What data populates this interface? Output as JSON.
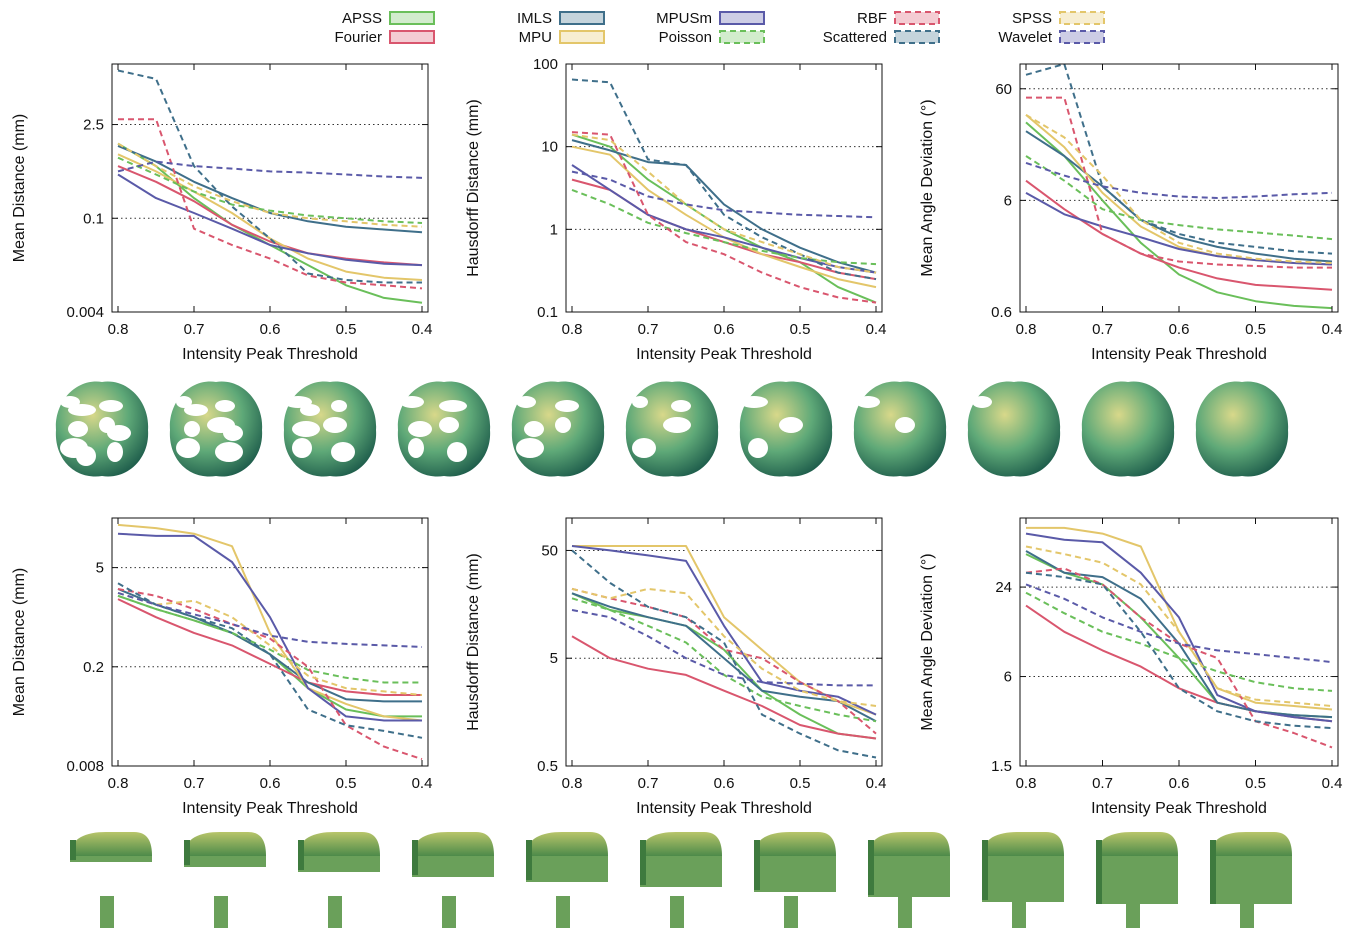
{
  "legend": {
    "entries": [
      {
        "name": "APSS",
        "color": "#6abf5a",
        "dash": false
      },
      {
        "name": "Fourier",
        "color": "#d9566e",
        "dash": false
      },
      {
        "name": "IMLS",
        "color": "#3f6f8a",
        "dash": false
      },
      {
        "name": "MPU",
        "color": "#e3c66a",
        "dash": false
      },
      {
        "name": "MPUSm",
        "color": "#5a5aa8",
        "dash": false
      },
      {
        "name": "Poisson",
        "color": "#6abf5a",
        "dash": true
      },
      {
        "name": "RBF",
        "color": "#d9566e",
        "dash": true
      },
      {
        "name": "Scattered",
        "color": "#3f6f8a",
        "dash": true
      },
      {
        "name": "SPSS",
        "color": "#e3c66a",
        "dash": true
      },
      {
        "name": "Wavelet",
        "color": "#5a5aa8",
        "dash": true
      }
    ]
  },
  "chart_data": [
    {
      "type": "line",
      "xlabel": "Intensity Peak Threshold",
      "ylabel": "Mean Distance (mm)",
      "yscale": "log",
      "ylim": [
        0.004,
        20
      ],
      "yticks": [
        0.004,
        0.1,
        2.5
      ],
      "ytick_labels": [
        "0.004",
        "0.1",
        "2.5"
      ],
      "xlim": [
        0.8,
        0.4
      ],
      "xticks": [
        0.8,
        0.7,
        0.6,
        0.5,
        0.4
      ],
      "xtick_labels": [
        "0.8",
        "0.7",
        "0.6",
        "0.5",
        "0.4"
      ],
      "grid_y": [
        0.1,
        2.5
      ],
      "x": [
        0.8,
        0.75,
        0.7,
        0.65,
        0.6,
        0.55,
        0.5,
        0.45,
        0.4
      ],
      "series": [
        {
          "name": "APSS",
          "values": [
            1.3,
            0.6,
            0.2,
            0.08,
            0.04,
            0.02,
            0.01,
            0.0065,
            0.0055
          ]
        },
        {
          "name": "Fourier",
          "values": [
            0.6,
            0.35,
            0.18,
            0.08,
            0.045,
            0.03,
            0.025,
            0.022,
            0.02
          ]
        },
        {
          "name": "IMLS",
          "values": [
            1.2,
            0.7,
            0.35,
            0.2,
            0.12,
            0.09,
            0.075,
            0.068,
            0.062
          ]
        },
        {
          "name": "MPU",
          "values": [
            0.9,
            0.5,
            0.25,
            0.12,
            0.05,
            0.025,
            0.016,
            0.013,
            0.012
          ]
        },
        {
          "name": "MPUSm",
          "values": [
            0.45,
            0.2,
            0.12,
            0.07,
            0.04,
            0.03,
            0.024,
            0.021,
            0.02
          ]
        },
        {
          "name": "Poisson",
          "values": [
            0.8,
            0.45,
            0.25,
            0.16,
            0.13,
            0.11,
            0.1,
            0.09,
            0.085
          ]
        },
        {
          "name": "RBF",
          "values": [
            3.0,
            3.0,
            0.07,
            0.04,
            0.025,
            0.014,
            0.011,
            0.01,
            0.009
          ]
        },
        {
          "name": "Scattered",
          "values": [
            16,
            12,
            0.6,
            0.15,
            0.05,
            0.015,
            0.012,
            0.011,
            0.011
          ]
        },
        {
          "name": "SPSS",
          "values": [
            1.3,
            0.6,
            0.3,
            0.18,
            0.12,
            0.1,
            0.09,
            0.08,
            0.075
          ]
        },
        {
          "name": "Wavelet",
          "values": [
            0.5,
            0.7,
            0.6,
            0.55,
            0.5,
            0.48,
            0.45,
            0.42,
            0.4
          ]
        }
      ]
    },
    {
      "type": "line",
      "xlabel": "Intensity Peak Threshold",
      "ylabel": "Hausdorff Distance (mm)",
      "yscale": "log",
      "ylim": [
        0.1,
        100
      ],
      "yticks": [
        0.1,
        1,
        10,
        100
      ],
      "ytick_labels": [
        "0.1",
        "1",
        "10",
        "100"
      ],
      "xlim": [
        0.8,
        0.4
      ],
      "xticks": [
        0.8,
        0.7,
        0.6,
        0.5,
        0.4
      ],
      "xtick_labels": [
        "0.8",
        "0.7",
        "0.6",
        "0.5",
        "0.4"
      ],
      "grid_y": [
        1,
        10
      ],
      "x": [
        0.8,
        0.75,
        0.7,
        0.65,
        0.6,
        0.55,
        0.5,
        0.45,
        0.4
      ],
      "series": [
        {
          "name": "APSS",
          "values": [
            14,
            10,
            4,
            2,
            1,
            0.6,
            0.4,
            0.2,
            0.13
          ]
        },
        {
          "name": "Fourier",
          "values": [
            4,
            3,
            1.5,
            1,
            0.7,
            0.5,
            0.4,
            0.3,
            0.25
          ]
        },
        {
          "name": "IMLS",
          "values": [
            12,
            9,
            6.5,
            6,
            2,
            1,
            0.6,
            0.4,
            0.3
          ]
        },
        {
          "name": "MPU",
          "values": [
            10,
            8,
            3,
            1.5,
            0.8,
            0.5,
            0.35,
            0.25,
            0.2
          ]
        },
        {
          "name": "MPUSm",
          "values": [
            6,
            3,
            1.5,
            1,
            0.8,
            0.6,
            0.45,
            0.35,
            0.3
          ]
        },
        {
          "name": "Poisson",
          "values": [
            3,
            2,
            1.2,
            0.9,
            0.7,
            0.55,
            0.45,
            0.4,
            0.38
          ]
        },
        {
          "name": "RBF",
          "values": [
            15,
            14,
            1.5,
            0.7,
            0.5,
            0.3,
            0.2,
            0.15,
            0.13
          ]
        },
        {
          "name": "Scattered",
          "values": [
            65,
            60,
            7,
            6,
            1.5,
            0.8,
            0.5,
            0.3,
            0.25
          ]
        },
        {
          "name": "SPSS",
          "values": [
            14,
            12,
            5,
            2,
            1,
            0.7,
            0.5,
            0.35,
            0.3
          ]
        },
        {
          "name": "Wavelet",
          "values": [
            5,
            4,
            2.5,
            2,
            1.7,
            1.6,
            1.5,
            1.45,
            1.4
          ]
        }
      ]
    },
    {
      "type": "line",
      "xlabel": "Intensity Peak Threshold",
      "ylabel": "Mean Angle Deviation (°)",
      "yscale": "log",
      "ylim": [
        0.6,
        100
      ],
      "yticks": [
        0.6,
        6,
        60
      ],
      "ytick_labels": [
        "0.6",
        "6",
        "60"
      ],
      "xlim": [
        0.8,
        0.4
      ],
      "xticks": [
        0.8,
        0.7,
        0.6,
        0.5,
        0.4
      ],
      "xtick_labels": [
        "0.8",
        "0.7",
        "0.6",
        "0.5",
        "0.4"
      ],
      "grid_y": [
        6,
        60
      ],
      "x": [
        0.8,
        0.75,
        0.7,
        0.65,
        0.6,
        0.55,
        0.5,
        0.45,
        0.4
      ],
      "series": [
        {
          "name": "APSS",
          "values": [
            30,
            15,
            6,
            2.5,
            1.3,
            0.9,
            0.75,
            0.68,
            0.65
          ]
        },
        {
          "name": "Fourier",
          "values": [
            9,
            5,
            3,
            2,
            1.5,
            1.2,
            1.05,
            1,
            0.95
          ]
        },
        {
          "name": "IMLS",
          "values": [
            25,
            15,
            8,
            4,
            2.8,
            2.3,
            2,
            1.8,
            1.7
          ]
        },
        {
          "name": "MPU",
          "values": [
            35,
            18,
            7,
            3.5,
            2.3,
            1.9,
            1.75,
            1.65,
            1.6
          ]
        },
        {
          "name": "MPUSm",
          "values": [
            7,
            4.5,
            3.5,
            2.8,
            2.2,
            1.9,
            1.75,
            1.65,
            1.6
          ]
        },
        {
          "name": "Poisson",
          "values": [
            15,
            9,
            5,
            4,
            3.6,
            3.3,
            3.1,
            2.9,
            2.7
          ]
        },
        {
          "name": "RBF",
          "values": [
            50,
            50,
            3,
            2,
            1.7,
            1.6,
            1.55,
            1.5,
            1.5
          ]
        },
        {
          "name": "Scattered",
          "values": [
            80,
            100,
            8,
            4,
            3,
            2.5,
            2.3,
            2.1,
            2
          ]
        },
        {
          "name": "SPSS",
          "values": [
            35,
            22,
            10,
            4,
            2.5,
            2,
            1.8,
            1.7,
            1.65
          ]
        },
        {
          "name": "Wavelet",
          "values": [
            13,
            10,
            8,
            7,
            6.5,
            6.3,
            6.5,
            6.8,
            7
          ]
        }
      ]
    },
    {
      "type": "line",
      "xlabel": "Intensity Peak Threshold",
      "ylabel": "Mean Distance (mm)",
      "yscale": "log",
      "ylim": [
        0.008,
        25
      ],
      "yticks": [
        0.008,
        0.2,
        5
      ],
      "ytick_labels": [
        "0.008",
        "0.2",
        "5"
      ],
      "xlim": [
        0.8,
        0.4
      ],
      "xticks": [
        0.8,
        0.7,
        0.6,
        0.5,
        0.4
      ],
      "xtick_labels": [
        "0.8",
        "0.7",
        "0.6",
        "0.5",
        "0.4"
      ],
      "grid_y": [
        0.2,
        5
      ],
      "x": [
        0.8,
        0.75,
        0.7,
        0.65,
        0.6,
        0.55,
        0.5,
        0.45,
        0.4
      ],
      "series": [
        {
          "name": "APSS",
          "values": [
            2,
            1.3,
            0.9,
            0.6,
            0.3,
            0.1,
            0.05,
            0.04,
            0.04
          ]
        },
        {
          "name": "Fourier",
          "values": [
            1.8,
            1,
            0.6,
            0.4,
            0.22,
            0.12,
            0.09,
            0.08,
            0.08
          ]
        },
        {
          "name": "IMLS",
          "values": [
            2.5,
            1.5,
            1,
            0.6,
            0.3,
            0.12,
            0.07,
            0.065,
            0.065
          ]
        },
        {
          "name": "MPU",
          "values": [
            20,
            18,
            15,
            10,
            0.6,
            0.1,
            0.06,
            0.04,
            0.035
          ]
        },
        {
          "name": "MPUSm",
          "values": [
            15,
            14,
            14,
            6,
            1,
            0.1,
            0.04,
            0.035,
            0.035
          ]
        },
        {
          "name": "Poisson",
          "values": [
            2,
            1.3,
            0.9,
            0.6,
            0.35,
            0.18,
            0.14,
            0.12,
            0.12
          ]
        },
        {
          "name": "RBF",
          "values": [
            2.5,
            2,
            1.3,
            0.8,
            0.5,
            0.2,
            0.03,
            0.015,
            0.01
          ]
        },
        {
          "name": "Scattered",
          "values": [
            3,
            1.5,
            1,
            0.7,
            0.3,
            0.05,
            0.03,
            0.025,
            0.02
          ]
        },
        {
          "name": "SPSS",
          "values": [
            2.2,
            1.5,
            1.7,
            1,
            0.4,
            0.15,
            0.1,
            0.09,
            0.08
          ]
        },
        {
          "name": "Wavelet",
          "values": [
            2.2,
            1.5,
            1.1,
            0.8,
            0.55,
            0.45,
            0.42,
            0.4,
            0.38
          ]
        }
      ]
    },
    {
      "type": "line",
      "xlabel": "Intensity Peak Threshold",
      "ylabel": "Hausdorff Distance (mm)",
      "yscale": "log",
      "ylim": [
        0.5,
        100
      ],
      "yticks": [
        0.5,
        5,
        50
      ],
      "ytick_labels": [
        "0.5",
        "5",
        "50"
      ],
      "xlim": [
        0.8,
        0.4
      ],
      "xticks": [
        0.8,
        0.7,
        0.6,
        0.5,
        0.4
      ],
      "xtick_labels": [
        "0.8",
        "0.7",
        "0.6",
        "0.5",
        "0.4"
      ],
      "grid_y": [
        5,
        50
      ],
      "x": [
        0.8,
        0.75,
        0.7,
        0.65,
        0.6,
        0.55,
        0.5,
        0.45,
        0.4
      ],
      "series": [
        {
          "name": "APSS",
          "values": [
            20,
            14,
            12,
            10,
            6,
            2.5,
            1.5,
            1,
            0.9
          ]
        },
        {
          "name": "Fourier",
          "values": [
            8,
            5,
            4,
            3.5,
            2.5,
            1.8,
            1.2,
            1,
            0.9
          ]
        },
        {
          "name": "IMLS",
          "values": [
            20,
            15,
            12,
            10,
            5,
            2.5,
            2.2,
            2,
            1.3
          ]
        },
        {
          "name": "MPU",
          "values": [
            55,
            55,
            55,
            55,
            12,
            6,
            3,
            2,
            1.5
          ]
        },
        {
          "name": "MPUSm",
          "values": [
            55,
            50,
            45,
            40,
            10,
            3,
            2.5,
            2.2,
            1.5
          ]
        },
        {
          "name": "Poisson",
          "values": [
            18,
            14,
            10,
            7,
            3.5,
            2.2,
            1.8,
            1.5,
            1.3
          ]
        },
        {
          "name": "RBF",
          "values": [
            22,
            18,
            15,
            12,
            6,
            5,
            3,
            2,
            1
          ]
        },
        {
          "name": "Scattered",
          "values": [
            50,
            25,
            15,
            12,
            7,
            1.5,
            1,
            0.7,
            0.6
          ]
        },
        {
          "name": "SPSS",
          "values": [
            22,
            18,
            22,
            20,
            8,
            4,
            2.5,
            2,
            1.8
          ]
        },
        {
          "name": "Wavelet",
          "values": [
            14,
            12,
            8,
            5,
            3.5,
            3,
            2.9,
            2.8,
            2.8
          ]
        }
      ]
    },
    {
      "type": "line",
      "xlabel": "Intensity Peak Threshold",
      "ylabel": "Mean Angle Deviation (°)",
      "yscale": "log",
      "ylim": [
        1.5,
        70
      ],
      "yticks": [
        1.5,
        6,
        24
      ],
      "ytick_labels": [
        "1.5",
        "6",
        "24"
      ],
      "xlim": [
        0.8,
        0.4
      ],
      "xticks": [
        0.8,
        0.7,
        0.6,
        0.5,
        0.4
      ],
      "xtick_labels": [
        "0.8",
        "0.7",
        "0.6",
        "0.5",
        "0.4"
      ],
      "grid_y": [
        6,
        24
      ],
      "x": [
        0.8,
        0.75,
        0.7,
        0.65,
        0.6,
        0.55,
        0.5,
        0.45,
        0.4
      ],
      "series": [
        {
          "name": "APSS",
          "values": [
            40,
            30,
            25,
            15,
            8,
            4,
            3.5,
            3.3,
            3.2
          ]
        },
        {
          "name": "Fourier",
          "values": [
            18,
            12,
            9,
            7,
            5,
            4,
            3.5,
            3.2,
            3
          ]
        },
        {
          "name": "IMLS",
          "values": [
            42,
            30,
            28,
            20,
            10,
            4,
            3.5,
            3.3,
            3.2
          ]
        },
        {
          "name": "MPU",
          "values": [
            60,
            60,
            55,
            45,
            12,
            5,
            4,
            3.8,
            3.6
          ]
        },
        {
          "name": "MPUSm",
          "values": [
            55,
            50,
            48,
            30,
            15,
            4.5,
            3.5,
            3.2,
            3
          ]
        },
        {
          "name": "Poisson",
          "values": [
            22,
            16,
            12,
            10,
            8,
            6.5,
            5.5,
            5,
            4.8
          ]
        },
        {
          "name": "RBF",
          "values": [
            30,
            32,
            25,
            15,
            10,
            8,
            3,
            2.5,
            2
          ]
        },
        {
          "name": "Scattered",
          "values": [
            30,
            28,
            25,
            12,
            5,
            3.5,
            3,
            2.8,
            2.7
          ]
        },
        {
          "name": "SPSS",
          "values": [
            45,
            40,
            35,
            25,
            12,
            5,
            4.2,
            4,
            3.8
          ]
        },
        {
          "name": "Wavelet",
          "values": [
            25,
            20,
            15,
            12,
            10,
            9,
            8.5,
            8,
            7.5
          ]
        }
      ]
    }
  ],
  "icons": {
    "top_row": "blobby-surface-reconstruction",
    "bottom_row": "mailbox-surface-reconstruction"
  }
}
